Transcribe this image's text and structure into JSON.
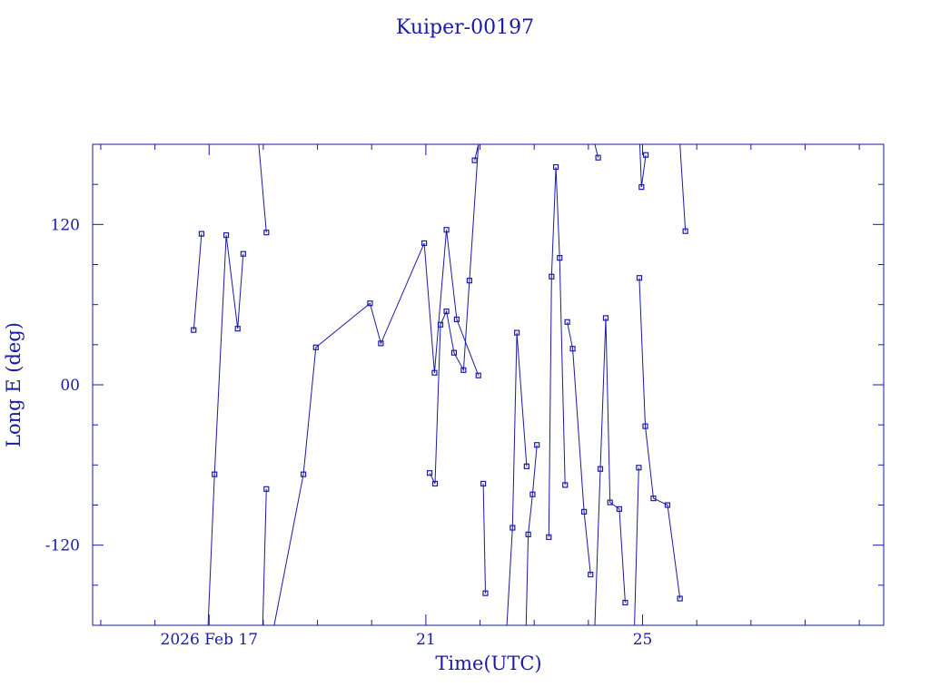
{
  "chart_data": {
    "type": "line",
    "title": "Kuiper-00197",
    "xlabel": "Time(UTC)",
    "ylabel": "Long E (deg)",
    "x_unit": "days (Feb 2026, UTC)",
    "xlim": [
      14.85,
      29.45
    ],
    "ylim": [
      -180,
      180
    ],
    "x_ticks": [
      {
        "x": 17,
        "label": "2026 Feb 17"
      },
      {
        "x": 21,
        "label": "21"
      },
      {
        "x": 25,
        "label": "25"
      }
    ],
    "y_ticks": [
      {
        "y": 120,
        "label": "120"
      },
      {
        "y": 0,
        "label": "00"
      },
      {
        "y": -120,
        "label": "-120"
      }
    ],
    "grid": false,
    "color": "#1a1aa6",
    "series": [
      {
        "x": [
          16.715,
          16.86
        ],
        "y": [
          41,
          113
        ]
      },
      {
        "x": [
          16.98,
          17.1,
          17.315,
          17.527,
          17.63
        ],
        "y": [
          -180,
          -67,
          112,
          42,
          98
        ]
      },
      {
        "x": [
          17.99,
          18.057
        ],
        "y": [
          -180,
          -78
        ]
      },
      {
        "x": [
          17.915,
          18.057
        ],
        "y": [
          180,
          114
        ]
      },
      {
        "x": [
          18.2,
          18.74,
          18.97,
          19.97,
          20.17,
          20.97,
          21.16,
          21.38,
          21.57,
          21.97
        ],
        "y": [
          -180,
          -67,
          28,
          61,
          31,
          106,
          9,
          116,
          49,
          7
        ]
      },
      {
        "x": [
          21.07,
          21.17,
          21.27,
          21.38,
          21.52,
          21.695,
          21.805,
          21.97,
          21.9
        ],
        "y": [
          -66,
          -74,
          45,
          55,
          24,
          11,
          78,
          180,
          168
        ]
      },
      {
        "x": [
          22.06,
          22.1
        ],
        "y": [
          -74,
          -156
        ]
      },
      {
        "x": [
          22.495,
          22.6,
          22.68,
          22.86
        ],
        "y": [
          -180,
          -107,
          39,
          -61
        ]
      },
      {
        "x": [
          22.85,
          22.89,
          22.97,
          23.05
        ],
        "y": [
          -180,
          -112,
          -82,
          -45
        ]
      },
      {
        "x": [
          23.27,
          23.32,
          23.4,
          23.47,
          23.57
        ],
        "y": [
          -114,
          81,
          163,
          95,
          -75
        ]
      },
      {
        "x": [
          23.61,
          23.71,
          23.92,
          24.04
        ],
        "y": [
          47,
          27,
          -95,
          -142
        ]
      },
      {
        "x": [
          24.12,
          24.22,
          24.32,
          24.4,
          24.57,
          24.68
        ],
        "y": [
          -180,
          -63,
          50,
          -88,
          -93,
          -163
        ]
      },
      {
        "x": [
          24.85,
          24.93
        ],
        "y": [
          -180,
          -62
        ]
      },
      {
        "x": [
          24.94,
          25.05,
          25.2,
          25.46,
          25.69
        ],
        "y": [
          80,
          -31,
          -85,
          -90,
          -160
        ]
      },
      {
        "x": [
          24.12,
          24.18
        ],
        "y": [
          180,
          170
        ]
      },
      {
        "x": [
          24.95,
          24.98,
          25.06
        ],
        "y": [
          180,
          148,
          172
        ]
      },
      {
        "x": [
          25.69,
          25.79
        ],
        "y": [
          180,
          115
        ]
      }
    ]
  }
}
